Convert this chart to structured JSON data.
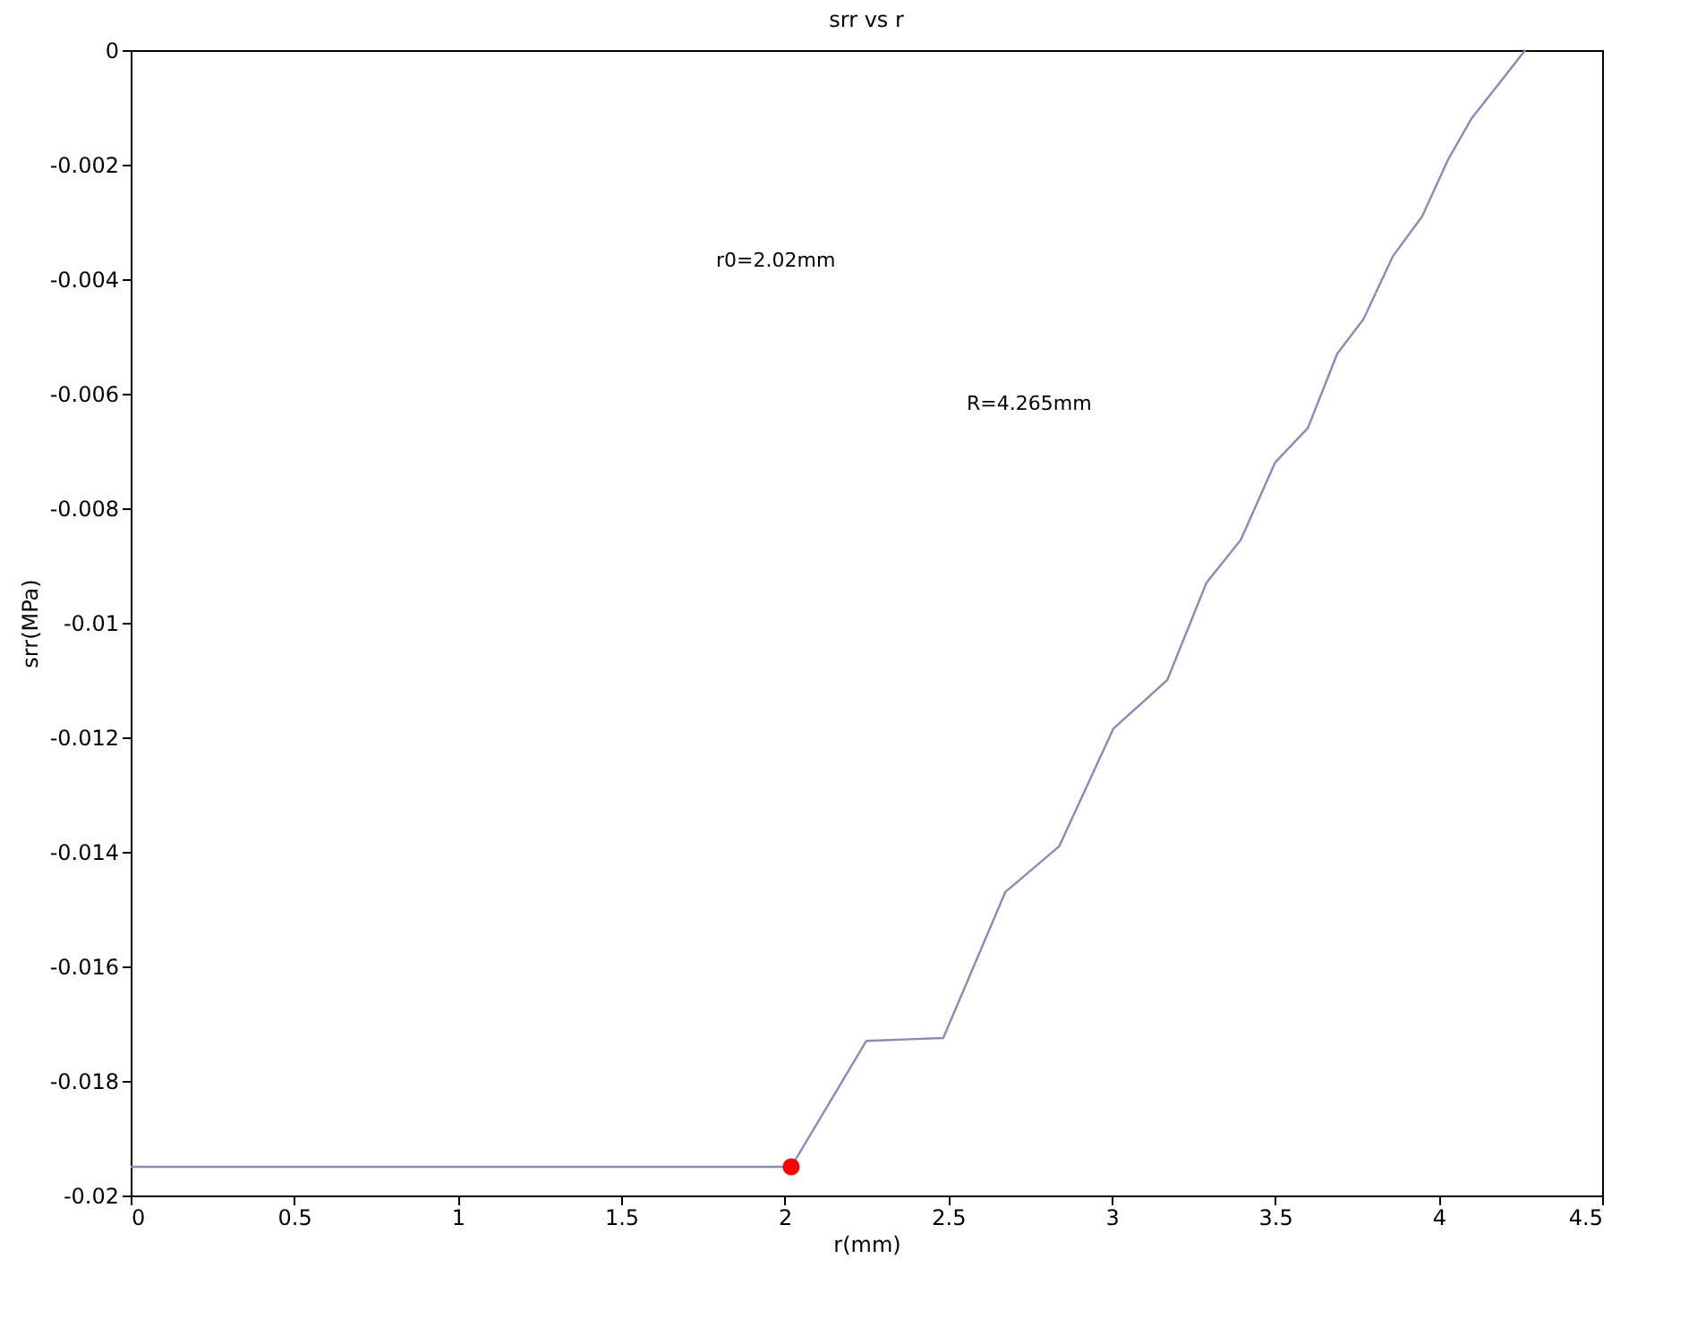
{
  "chart_data": {
    "type": "line",
    "title": "srr vs r",
    "xlabel": "r(mm)",
    "ylabel": "srr(MPa)",
    "xlim": [
      0,
      4.5
    ],
    "xticks": [
      0,
      0.5,
      1,
      1.5,
      2,
      2.5,
      3,
      3.5,
      4,
      4.5
    ],
    "ylim": [
      -0.02,
      0
    ],
    "yticks": [
      -0.02,
      -0.018,
      -0.016,
      -0.014,
      -0.012,
      -0.01,
      -0.008,
      -0.006,
      -0.004,
      -0.002,
      0
    ],
    "grid": false,
    "marker": "none",
    "line_style": "solid",
    "annotations": [
      "r0=2.02mm",
      "R=4.265mm"
    ],
    "series": [
      {
        "color": "#8a8ab8",
        "x": [
          0,
          2.02,
          2.25,
          2.485,
          2.675,
          2.84,
          3.005,
          3.17,
          3.29,
          3.395,
          3.5,
          3.6,
          3.69,
          3.77,
          3.86,
          3.95,
          4.03,
          4.1,
          4.265
        ],
        "values": [
          -0.0195,
          -0.0195,
          -0.0173,
          -0.01725,
          -0.0147,
          -0.0139,
          -0.01185,
          -0.011,
          -0.0093,
          -0.00855,
          -0.0072,
          -0.0066,
          -0.0053,
          -0.0047,
          -0.0036,
          -0.0029,
          -0.0019,
          -0.0012,
          0
        ]
      },
      {
        "type": "scatter",
        "color": "#ff0000",
        "marker": "circle",
        "x": [
          2.02
        ],
        "values": [
          -0.0195
        ]
      }
    ]
  }
}
